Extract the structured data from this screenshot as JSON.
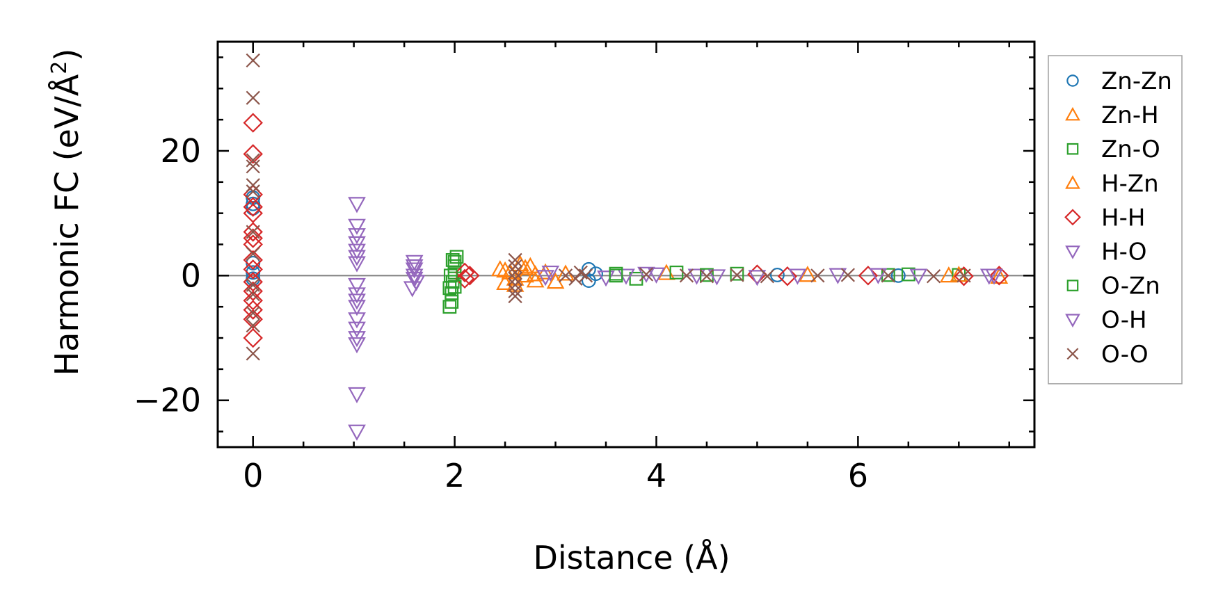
{
  "chart_data": {
    "type": "scatter",
    "xlabel": "Distance (Å)",
    "ylabel_main": "Harmonic FC (eV/Å",
    "ylabel_sup": "2",
    "ylabel_tail": ")",
    "xlim": [
      -0.35,
      7.75
    ],
    "ylim": [
      -27.5,
      37.5
    ],
    "x_ticks": [
      0,
      2,
      4,
      6
    ],
    "x_tick_labels": [
      "0",
      "2",
      "4",
      "6"
    ],
    "y_ticks": [
      -20,
      0,
      20
    ],
    "y_tick_labels": [
      "−20",
      "0",
      "20"
    ],
    "x_minor_step": 0.5,
    "y_minor_step": 5,
    "zero_line": true,
    "grid": false,
    "legend_position": "outside-right",
    "series": [
      {
        "name": "Zn-Zn",
        "marker": "circle",
        "color": "#1f77b4",
        "points": [
          [
            0,
            12.5
          ],
          [
            0,
            11.5
          ],
          [
            0,
            10.8
          ],
          [
            0,
            2
          ],
          [
            0,
            0.5
          ],
          [
            0,
            -0.5
          ],
          [
            3.33,
            1.0
          ],
          [
            3.33,
            -0.8
          ],
          [
            3.4,
            0.3
          ],
          [
            5.2,
            0.1
          ],
          [
            6.4,
            0.0
          ]
        ]
      },
      {
        "name": "Zn-H",
        "marker": "triangle-up",
        "color": "#ff7f0e",
        "points": [
          [
            2.45,
            1.0
          ],
          [
            2.5,
            -1.2
          ],
          [
            2.55,
            0.5
          ],
          [
            2.6,
            -1.5
          ],
          [
            2.65,
            1.8
          ],
          [
            2.7,
            0.0
          ],
          [
            2.75,
            1.5
          ],
          [
            2.8,
            -0.8
          ],
          [
            2.9,
            0.5
          ],
          [
            3.0,
            -1.0
          ],
          [
            4.1,
            0.4
          ],
          [
            6.9,
            0.0
          ],
          [
            7.4,
            -0.2
          ]
        ]
      },
      {
        "name": "Zn-O",
        "marker": "square",
        "color": "#2ca02c",
        "points": [
          [
            1.95,
            -5.0
          ],
          [
            1.97,
            -4.2
          ],
          [
            1.95,
            -2.0
          ],
          [
            1.98,
            -1.0
          ],
          [
            2.0,
            0.5
          ],
          [
            2.0,
            1.5
          ],
          [
            2.02,
            3.0
          ],
          [
            2.0,
            2.2
          ],
          [
            1.97,
            -2.8
          ],
          [
            3.6,
            0.3
          ],
          [
            3.8,
            -0.5
          ],
          [
            4.2,
            0.5
          ],
          [
            4.8,
            0.3
          ],
          [
            6.5,
            0.2
          ],
          [
            7.0,
            0.1
          ]
        ]
      },
      {
        "name": "H-Zn",
        "marker": "triangle-up",
        "color": "#ff7f0e",
        "points": [
          [
            2.5,
            0.8
          ],
          [
            2.6,
            -0.5
          ],
          [
            2.7,
            1.2
          ],
          [
            2.8,
            0.2
          ],
          [
            3.1,
            0.3
          ],
          [
            5.5,
            0.1
          ],
          [
            7.0,
            0.1
          ]
        ]
      },
      {
        "name": "H-H",
        "marker": "diamond",
        "color": "#d62728",
        "points": [
          [
            0,
            24.5
          ],
          [
            0,
            19.5
          ],
          [
            0,
            13
          ],
          [
            0,
            11
          ],
          [
            0,
            10
          ],
          [
            0,
            7
          ],
          [
            0,
            6
          ],
          [
            0,
            5
          ],
          [
            0,
            2.5
          ],
          [
            0,
            1
          ],
          [
            0,
            -1
          ],
          [
            0,
            -2.5
          ],
          [
            0,
            -4
          ],
          [
            0,
            -5.5
          ],
          [
            0,
            -7
          ],
          [
            0,
            -10
          ],
          [
            2.1,
            0.5
          ],
          [
            2.1,
            -0.5
          ],
          [
            2.15,
            0.0
          ],
          [
            5.0,
            0.2
          ],
          [
            5.3,
            -0.1
          ],
          [
            6.1,
            0.0
          ],
          [
            7.05,
            -0.1
          ],
          [
            7.4,
            0.0
          ]
        ]
      },
      {
        "name": "H-O",
        "marker": "triangle-down",
        "color": "#9467bd",
        "points": [
          [
            1.03,
            11.5
          ],
          [
            1.03,
            8
          ],
          [
            1.03,
            6.5
          ],
          [
            1.03,
            5.2
          ],
          [
            1.03,
            4
          ],
          [
            1.03,
            3
          ],
          [
            1.03,
            2
          ],
          [
            1.03,
            -1.5
          ],
          [
            1.03,
            -3
          ],
          [
            1.03,
            -4
          ],
          [
            1.03,
            -5
          ],
          [
            1.03,
            -7
          ],
          [
            1.03,
            -8.5
          ],
          [
            1.03,
            -10
          ],
          [
            1.03,
            -11
          ],
          [
            1.03,
            -19
          ],
          [
            1.03,
            -25
          ],
          [
            1.6,
            2.2
          ],
          [
            1.6,
            1.0
          ],
          [
            1.6,
            0.0
          ],
          [
            1.62,
            -1.0
          ],
          [
            1.58,
            -2.0
          ],
          [
            2.95,
            0.5
          ],
          [
            3.5,
            -0.3
          ],
          [
            3.7,
            0.0
          ],
          [
            4.0,
            0.2
          ],
          [
            4.4,
            0.0
          ],
          [
            5.0,
            -0.2
          ],
          [
            5.8,
            0.1
          ],
          [
            6.6,
            0.0
          ],
          [
            7.35,
            0.0
          ]
        ]
      },
      {
        "name": "O-Zn",
        "marker": "square",
        "color": "#2ca02c",
        "points": [
          [
            1.96,
            0.0
          ],
          [
            1.98,
            2.5
          ],
          [
            2.0,
            -1.8
          ],
          [
            3.6,
            0.0
          ],
          [
            4.5,
            0.1
          ],
          [
            6.3,
            0.1
          ]
        ]
      },
      {
        "name": "O-H",
        "marker": "triangle-down",
        "color": "#9467bd",
        "points": [
          [
            1.6,
            1.5
          ],
          [
            1.6,
            -0.5
          ],
          [
            2.9,
            -0.2
          ],
          [
            3.9,
            0.3
          ],
          [
            4.6,
            -0.1
          ],
          [
            5.4,
            0.0
          ],
          [
            6.2,
            0.1
          ],
          [
            7.3,
            0.0
          ]
        ]
      },
      {
        "name": "O-O",
        "marker": "x",
        "color": "#8c564b",
        "points": [
          [
            0,
            34.5
          ],
          [
            0,
            28.5
          ],
          [
            0,
            18.5
          ],
          [
            0,
            17.5
          ],
          [
            0,
            14.5
          ],
          [
            0,
            13.5
          ],
          [
            0,
            7
          ],
          [
            0,
            3.5
          ],
          [
            0,
            -1.5
          ],
          [
            0,
            -3
          ],
          [
            0,
            -6
          ],
          [
            0,
            -8
          ],
          [
            0,
            -12.5
          ],
          [
            2.6,
            2.5
          ],
          [
            2.6,
            1.5
          ],
          [
            2.6,
            0.5
          ],
          [
            2.6,
            -0.5
          ],
          [
            2.6,
            -1.5
          ],
          [
            2.6,
            -2.5
          ],
          [
            2.6,
            -3.3
          ],
          [
            3.1,
            0.0
          ],
          [
            3.2,
            -0.5
          ],
          [
            3.25,
            0.5
          ],
          [
            3.3,
            0.0
          ],
          [
            3.9,
            0.2
          ],
          [
            4.3,
            0.0
          ],
          [
            4.5,
            -0.1
          ],
          [
            4.8,
            0.1
          ],
          [
            5.1,
            -0.1
          ],
          [
            5.6,
            0.0
          ],
          [
            5.9,
            0.1
          ],
          [
            6.3,
            0.0
          ],
          [
            6.75,
            -0.1
          ],
          [
            7.05,
            0.0
          ]
        ]
      }
    ]
  }
}
